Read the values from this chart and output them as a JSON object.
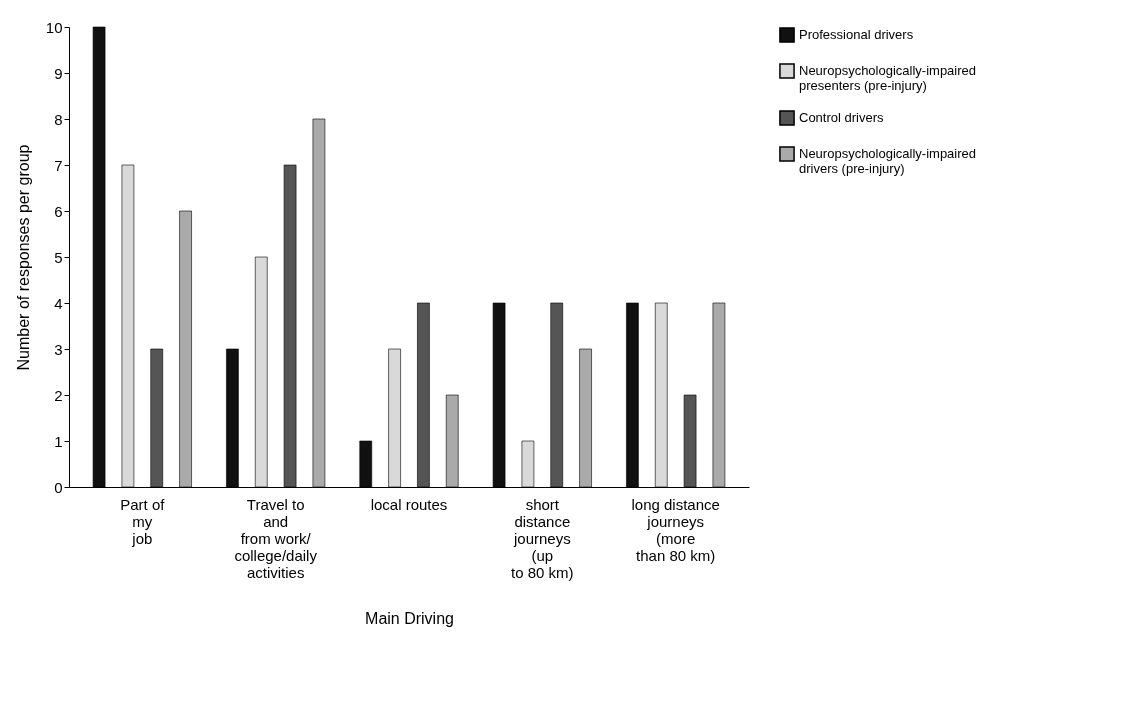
{
  "chart_data": {
    "type": "bar",
    "xlabel": "Main Driving",
    "ylabel": "Number of responses per group",
    "categories": [
      "Part of\nmy\njob",
      "Travel to\nand\nfrom work/\ncollege/daily\nactivities",
      "local routes",
      "short\ndistance\njourneys\n(up\nto 80 km)",
      "long distance\njourneys\n(more\nthan 80 km)"
    ],
    "series": [
      {
        "name": "Professional drivers",
        "color": "#111111",
        "values": [
          10,
          3,
          1,
          4,
          4
        ]
      },
      {
        "name": "Neuropsychologically-impaired\npresenters (pre-injury)",
        "color": "#d9d9d9",
        "values": [
          7,
          5,
          3,
          1,
          4
        ]
      },
      {
        "name": "Control drivers",
        "color": "#555555",
        "values": [
          3,
          7,
          4,
          4,
          2
        ]
      },
      {
        "name": "Neuropsychologically-impaired\ndrivers (pre-injury)",
        "color": "#aaaaaa",
        "values": [
          6,
          8,
          2,
          3,
          4
        ]
      }
    ],
    "ylim": [
      0,
      10
    ],
    "yticks": [
      0,
      1,
      2,
      3,
      4,
      5,
      6,
      7,
      8,
      9,
      10
    ],
    "grid": false,
    "legend": "top right"
  }
}
